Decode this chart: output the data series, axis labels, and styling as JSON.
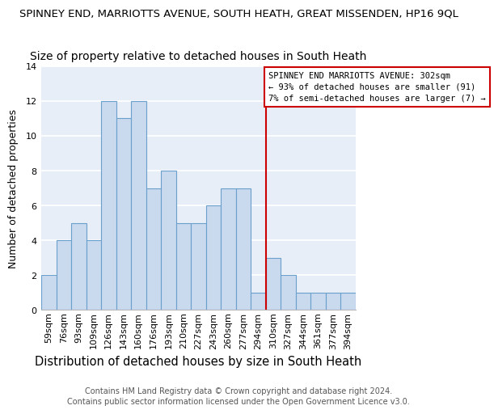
{
  "title1": "SPINNEY END, MARRIOTTS AVENUE, SOUTH HEATH, GREAT MISSENDEN, HP16 9QL",
  "title2": "Size of property relative to detached houses in South Heath",
  "xlabel": "Distribution of detached houses by size in South Heath",
  "ylabel": "Number of detached properties",
  "categories": [
    "59sqm",
    "76sqm",
    "93sqm",
    "109sqm",
    "126sqm",
    "143sqm",
    "160sqm",
    "176sqm",
    "193sqm",
    "210sqm",
    "227sqm",
    "243sqm",
    "260sqm",
    "277sqm",
    "294sqm",
    "310sqm",
    "327sqm",
    "344sqm",
    "361sqm",
    "377sqm",
    "394sqm"
  ],
  "values": [
    2,
    4,
    5,
    4,
    12,
    11,
    12,
    7,
    8,
    5,
    5,
    6,
    7,
    7,
    1,
    3,
    2,
    1,
    1,
    1,
    1
  ],
  "bar_color": "#c9d9ee",
  "bar_edge_color": "#6aa0cc",
  "plot_bg_color": "#e8eef7",
  "fig_bg_color": "#ffffff",
  "grid_color": "#ffffff",
  "vline_color": "#cc0000",
  "annotation_text": "SPINNEY END MARRIOTTS AVENUE: 302sqm\n← 93% of detached houses are smaller (91)\n7% of semi-detached houses are larger (7) →",
  "annotation_box_facecolor": "#ffffff",
  "annotation_box_edgecolor": "#cc0000",
  "ylim": [
    0,
    14
  ],
  "yticks": [
    0,
    2,
    4,
    6,
    8,
    10,
    12,
    14
  ],
  "footer_text": "Contains HM Land Registry data © Crown copyright and database right 2024.\nContains public sector information licensed under the Open Government Licence v3.0.",
  "title1_fontsize": 9.5,
  "title2_fontsize": 10,
  "xlabel_fontsize": 10.5,
  "ylabel_fontsize": 9,
  "tick_fontsize": 8,
  "footer_fontsize": 7,
  "annotation_fontsize": 7.5
}
